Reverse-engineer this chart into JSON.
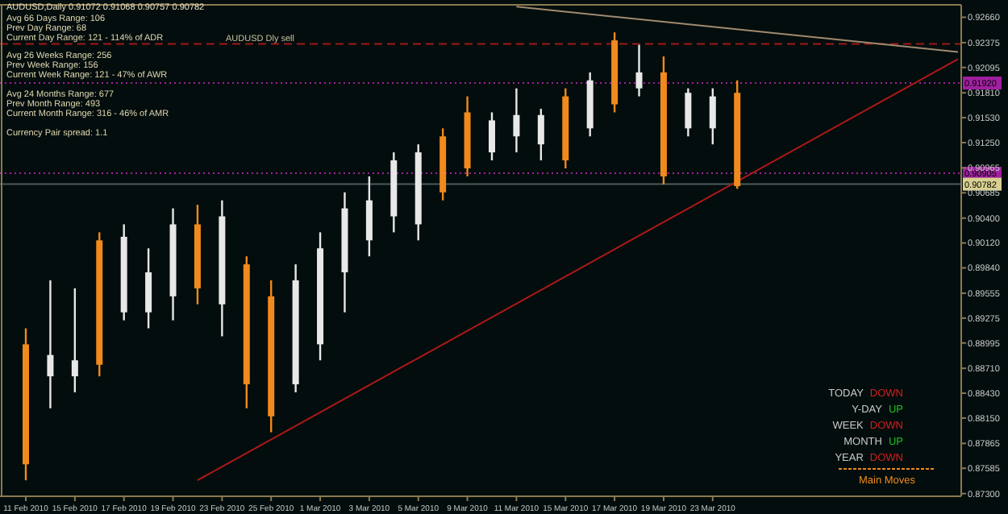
{
  "chart_data": {
    "type": "candlestick",
    "title": "AUDUSD,Daily 0.91072 0.91068 0.90757 0.90782",
    "categories": [
      "11 Feb 2010",
      null,
      "15 Feb 2010",
      null,
      "17 Feb 2010",
      null,
      "19 Feb 2010",
      null,
      "23 Feb 2010",
      null,
      "25 Feb 2010",
      null,
      "1 Mar 2010",
      null,
      "3 Mar 2010",
      null,
      "5 Mar 2010",
      null,
      "9 Mar 2010",
      null,
      "11 Mar 2010",
      null,
      "15 Mar 2010",
      null,
      "17 Mar 2010",
      null,
      "19 Mar 2010",
      null,
      "23 Mar 2010",
      null,
      null,
      null,
      null,
      null,
      null,
      null,
      null,
      null,
      null
    ],
    "ohlc": [
      [
        0.8898,
        0.8916,
        0.8745,
        0.8763
      ],
      [
        0.8862,
        0.897,
        0.8826,
        0.8886
      ],
      [
        0.8862,
        0.8961,
        0.8844,
        0.888
      ],
      [
        0.9015,
        0.9024,
        0.8862,
        0.8875
      ],
      [
        0.8934,
        0.9033,
        0.8925,
        0.9019
      ],
      [
        0.8934,
        0.9006,
        0.8916,
        0.8979
      ],
      [
        0.8952,
        0.9051,
        0.8925,
        0.9033
      ],
      [
        0.9033,
        0.9055,
        0.8943,
        0.8961
      ],
      [
        0.8943,
        0.906,
        0.8907,
        0.9042
      ],
      [
        0.8988,
        0.8997,
        0.8826,
        0.8853
      ],
      [
        0.8952,
        0.897,
        0.8799,
        0.8817
      ],
      [
        0.8853,
        0.8988,
        0.8844,
        0.897
      ],
      [
        0.8898,
        0.9024,
        0.888,
        0.9006
      ],
      [
        0.8979,
        0.9069,
        0.8934,
        0.9051
      ],
      [
        0.9015,
        0.9087,
        0.8997,
        0.906
      ],
      [
        0.9042,
        0.9114,
        0.9024,
        0.9105
      ],
      [
        0.9033,
        0.9123,
        0.9015,
        0.9114
      ],
      [
        0.9132,
        0.9141,
        0.906,
        0.9069
      ],
      [
        0.9159,
        0.9177,
        0.9087,
        0.9096
      ],
      [
        0.9114,
        0.9159,
        0.9105,
        0.915
      ],
      [
        0.9132,
        0.9186,
        0.9114,
        0.9156
      ],
      [
        0.9123,
        0.9163,
        0.9105,
        0.9156
      ],
      [
        0.9177,
        0.9186,
        0.9096,
        0.9105
      ],
      [
        0.9141,
        0.9204,
        0.9132,
        0.9195
      ],
      [
        0.924,
        0.9249,
        0.9159,
        0.9168
      ],
      [
        0.9186,
        0.9235,
        0.9177,
        0.9204
      ],
      [
        0.9204,
        0.9222,
        0.9078,
        0.9087
      ],
      [
        0.9141,
        0.9186,
        0.9132,
        0.9181
      ],
      [
        0.9141,
        0.9186,
        0.9123,
        0.9177
      ],
      [
        0.9181,
        0.9195,
        0.9073,
        0.9076
      ],
      null,
      null,
      null,
      null,
      null,
      null,
      null,
      null,
      null
    ],
    "colors": [
      "#f08a1c",
      "#e8e8e8",
      "#e8e8e8",
      "#f08a1c",
      "#e8e8e8",
      "#e8e8e8",
      "#e8e8e8",
      "#f08a1c",
      "#e8e8e8",
      "#f08a1c",
      "#f08a1c",
      "#e8e8e8",
      "#e8e8e8",
      "#e8e8e8",
      "#e8e8e8",
      "#e8e8e8",
      "#e8e8e8",
      "#f08a1c",
      "#f08a1c",
      "#e8e8e8",
      "#e8e8e8",
      "#e8e8e8",
      "#f08a1c",
      "#e8e8e8",
      "#f08a1c",
      "#e8e8e8",
      "#f08a1c",
      "#e8e8e8",
      "#e8e8e8",
      "#f08a1c",
      null,
      null,
      null,
      null,
      null,
      null,
      null,
      null,
      null
    ],
    "series": [
      {
        "type": "line",
        "color": "#b01818",
        "values": [
          null,
          null,
          null,
          null,
          null,
          null,
          null,
          0.8745,
          null,
          null,
          null,
          null,
          null,
          null,
          null,
          null,
          null,
          null,
          null,
          null,
          null,
          null,
          null,
          null,
          null,
          null,
          null,
          null,
          null,
          null,
          null,
          null,
          null,
          null,
          null,
          null,
          null,
          null,
          0.9219
        ]
      },
      {
        "type": "line",
        "color": "#a08a70",
        "values": [
          null,
          null,
          null,
          null,
          null,
          null,
          null,
          null,
          null,
          null,
          null,
          null,
          null,
          null,
          null,
          null,
          null,
          null,
          null,
          null,
          0.9278,
          null,
          null,
          null,
          null,
          null,
          null,
          null,
          null,
          null,
          null,
          null,
          null,
          null,
          null,
          null,
          null,
          null,
          0.9227
        ]
      }
    ],
    "ylim": [
      0.8727,
      0.928
    ],
    "yticks": [
      {
        "value": 0.9266,
        "label": "0.92660"
      },
      {
        "value": 0.92375,
        "label": "0.92375"
      },
      {
        "value": 0.92095,
        "label": "0.92095"
      },
      {
        "value": 0.9181,
        "label": "0.91810"
      },
      {
        "value": 0.9153,
        "label": "0.91530"
      },
      {
        "value": 0.9125,
        "label": "0.91250"
      },
      {
        "value": 0.90965,
        "label": "0.90965"
      },
      {
        "value": 0.90685,
        "label": "0.90685"
      },
      {
        "value": 0.904,
        "label": "0.90400"
      },
      {
        "value": 0.9012,
        "label": "0.90120"
      },
      {
        "value": 0.8984,
        "label": "0.89840"
      },
      {
        "value": 0.89555,
        "label": "0.89555"
      },
      {
        "value": 0.89275,
        "label": "0.89275"
      },
      {
        "value": 0.88995,
        "label": "0.88995"
      },
      {
        "value": 0.8871,
        "label": "0.88710"
      },
      {
        "value": 0.8843,
        "label": "0.88430"
      },
      {
        "value": 0.8815,
        "label": "0.88150"
      },
      {
        "value": 0.87865,
        "label": "0.87865"
      },
      {
        "value": 0.87585,
        "label": "0.87585"
      },
      {
        "value": 0.873,
        "label": "0.87300"
      }
    ],
    "ref_lines": [
      {
        "axis": "y",
        "value": 0.9236,
        "label": "AUDUSD Dly sell",
        "color": "#a01818",
        "line_style": "dashed"
      },
      {
        "axis": "y",
        "value": 0.9192,
        "label": "0.91920",
        "color": "#a020a0",
        "line_style": "dotted"
      },
      {
        "axis": "y",
        "value": 0.90905,
        "label": "0.90905",
        "color": "#a020a0",
        "line_style": "dotted"
      },
      {
        "axis": "y",
        "value": 0.90782,
        "label": "0.90782",
        "color": "#4a5a5a",
        "line_style": "solid"
      }
    ],
    "annotations": [
      "Avg 66 Days Range: 106",
      "Prev Day Range: 68",
      "Current Day Range: 121 - 114% of ADR",
      "Avg 26 Weeks Range: 256",
      "Prev Week Range: 156",
      "Current Week Range: 121 - 47% of AWR",
      "Avg 24 Months Range: 677",
      "Prev Month Range: 493",
      "Current Month Range: 316 - 46% of AMR",
      "Currency Pair spread: 1.1",
      "TODAY DOWN",
      "Y-DAY UP",
      "WEEK DOWN",
      "MONTH UP",
      "YEAR DOWN",
      "Main Moves"
    ]
  }
}
